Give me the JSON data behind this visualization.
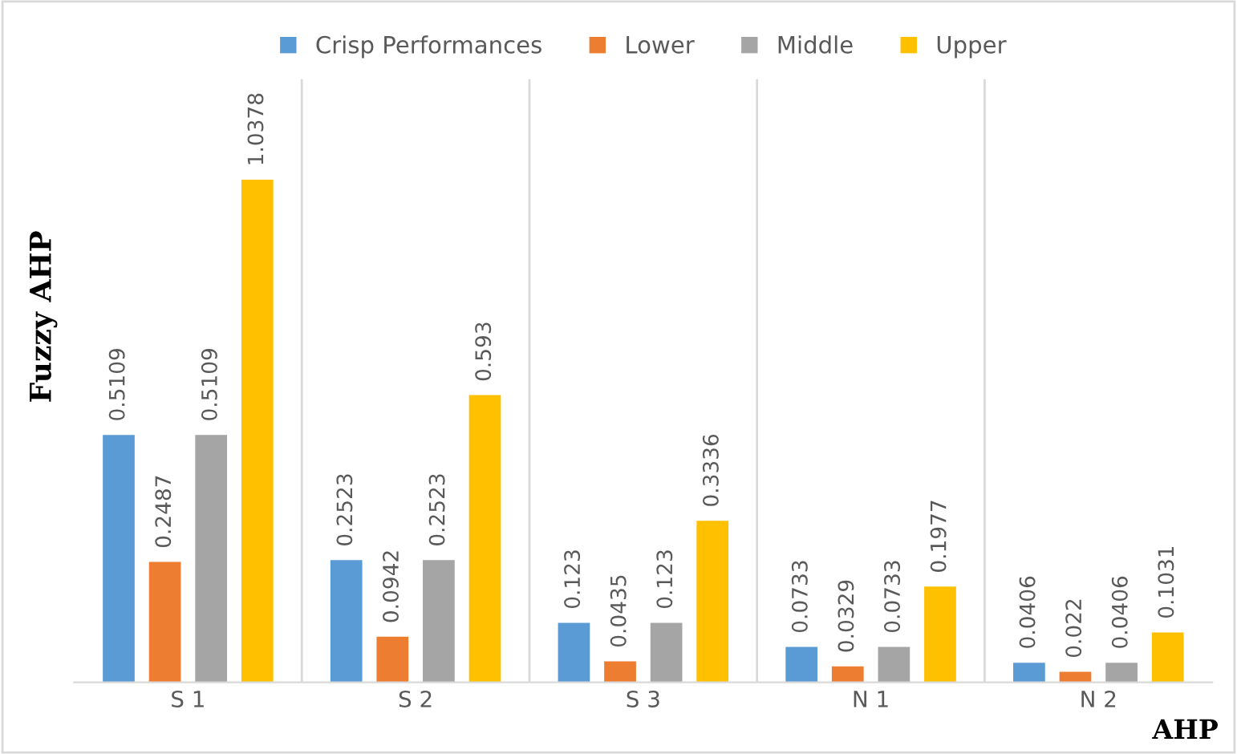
{
  "chart_data": {
    "type": "bar",
    "xlabel": "AHP",
    "ylabel": "Fuzzy AHP",
    "categories": [
      "S 1",
      "S 2",
      "S 3",
      "N 1",
      "N 2"
    ],
    "series": [
      {
        "name": "Crisp Performances",
        "color": "#5b9bd5",
        "values": [
          0.5109,
          0.2523,
          0.123,
          0.0733,
          0.0406
        ]
      },
      {
        "name": "Lower",
        "color": "#ed7d31",
        "values": [
          0.2487,
          0.0942,
          0.0435,
          0.0329,
          0.022
        ]
      },
      {
        "name": "Middle",
        "color": "#a5a5a5",
        "values": [
          0.5109,
          0.2523,
          0.123,
          0.0733,
          0.0406
        ]
      },
      {
        "name": "Upper",
        "color": "#ffc000",
        "values": [
          1.0378,
          0.593,
          0.3336,
          0.1977,
          0.1031
        ]
      }
    ],
    "data_labels": true,
    "grid": "x",
    "legend": "top",
    "tick_labels": "x"
  }
}
